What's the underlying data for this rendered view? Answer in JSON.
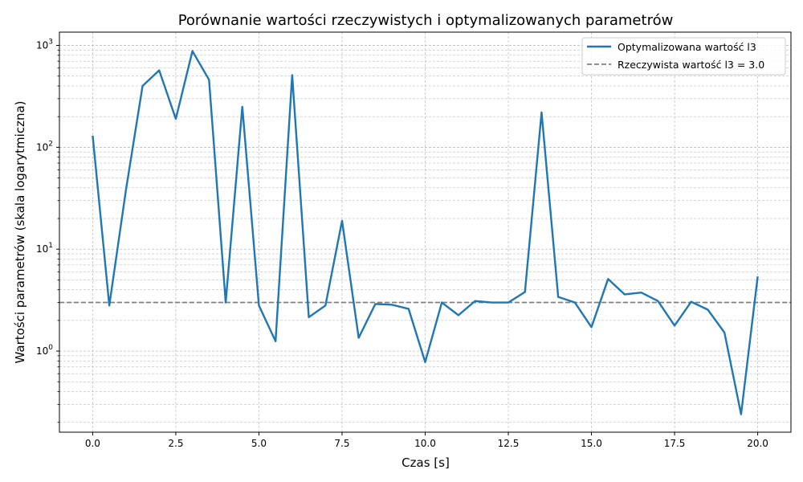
{
  "chart_data": {
    "type": "line",
    "title": "Porównanie wartości rzeczywistych i optymalizowanych parametrów",
    "xlabel": "Czas [s]",
    "ylabel": "Wartości parametrów (skala logarytmiczna)",
    "x_ticks": [
      "0.0",
      "2.5",
      "5.0",
      "7.5",
      "10.0",
      "12.5",
      "15.0",
      "17.5",
      "20.0"
    ],
    "y_ticks": [
      {
        "value": 1,
        "base": "10",
        "exp": "0"
      },
      {
        "value": 10,
        "base": "10",
        "exp": "1"
      },
      {
        "value": 100,
        "base": "10",
        "exp": "2"
      },
      {
        "value": 1000,
        "base": "10",
        "exp": "3"
      }
    ],
    "xlim": [
      -1.0,
      21.0
    ],
    "ylim": [
      0.16,
      1350
    ],
    "yscale": "log",
    "grid": true,
    "legend_position": "top-right",
    "series": [
      {
        "name": "Optymalizowana wartość l3",
        "color": "#1f77b4",
        "style": "solid",
        "x": [
          0.0,
          0.5,
          1.0,
          1.5,
          2.0,
          2.5,
          3.0,
          3.5,
          4.0,
          4.5,
          5.0,
          5.5,
          6.0,
          6.5,
          7.0,
          7.5,
          8.0,
          8.5,
          9.0,
          9.5,
          10.0,
          10.5,
          11.0,
          11.5,
          12.0,
          12.5,
          13.0,
          13.5,
          14.0,
          14.5,
          15.0,
          15.5,
          16.0,
          16.5,
          17.0,
          17.5,
          18.0,
          18.5,
          19.0,
          19.5,
          20.0
        ],
        "y": [
          130,
          2.8,
          38,
          400,
          570,
          190,
          880,
          460,
          3.0,
          250,
          2.8,
          1.25,
          510,
          2.15,
          2.8,
          19,
          1.35,
          2.9,
          2.85,
          2.6,
          0.78,
          3.0,
          2.25,
          3.1,
          3.0,
          3.0,
          3.8,
          220,
          3.4,
          3.0,
          1.72,
          5.1,
          3.6,
          3.75,
          3.1,
          1.78,
          3.05,
          2.55,
          1.52,
          0.24,
          5.4
        ]
      },
      {
        "name": "Rzeczywista wartość l3 = 3.0",
        "color": "#808080",
        "style": "dashed",
        "value": 3.0
      }
    ]
  }
}
